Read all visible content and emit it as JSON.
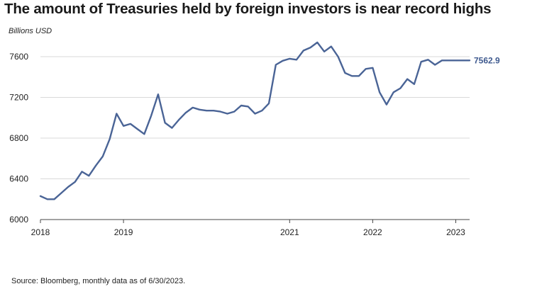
{
  "title": "The amount of Treasuries held by foreign investors is near record highs",
  "unit_label": "Billions USD",
  "source": "Source: Bloomberg, monthly data as of 6/30/2023.",
  "colors": {
    "line": "#4a6496",
    "end_label": "#3f5a8f",
    "grid": "#d9d9d9",
    "axis": "#444444"
  },
  "chart_data": {
    "type": "line",
    "title": "The amount of Treasuries held by foreign investors is near record highs",
    "ylabel": "Billions USD",
    "xlabel": "",
    "ylim": [
      6000,
      7800
    ],
    "yticks": [
      6000,
      6400,
      6800,
      7200,
      7600
    ],
    "xticks": [
      {
        "value": "2018-01",
        "label": "2018"
      },
      {
        "value": "2019-01",
        "label": "2019"
      },
      {
        "value": "2021-01",
        "label": "2021"
      },
      {
        "value": "2022-01",
        "label": "2022"
      },
      {
        "value": "2023-01",
        "label": "2023"
      }
    ],
    "grid": true,
    "end_label": "7562.9",
    "series": [
      {
        "x": [
          "2018-01",
          "2018-02",
          "2018-03",
          "2018-04",
          "2018-05",
          "2018-06",
          "2018-07",
          "2018-08",
          "2018-09",
          "2018-10",
          "2018-11",
          "2018-12",
          "2019-01",
          "2019-02",
          "2019-03",
          "2019-04",
          "2019-05",
          "2019-06",
          "2019-07",
          "2019-08",
          "2019-09",
          "2019-10",
          "2019-11",
          "2019-12",
          "2020-01",
          "2020-02",
          "2020-03",
          "2020-04",
          "2020-05",
          "2020-06",
          "2020-07",
          "2020-08",
          "2020-09",
          "2020-10",
          "2020-11",
          "2020-12",
          "2021-01",
          "2021-02",
          "2021-03",
          "2021-04",
          "2021-05",
          "2021-06",
          "2021-07",
          "2021-08",
          "2021-09",
          "2021-10",
          "2021-11",
          "2021-12",
          "2022-01",
          "2022-02",
          "2022-03",
          "2022-04",
          "2022-05",
          "2022-06",
          "2022-07",
          "2022-08",
          "2022-09",
          "2022-10",
          "2022-11",
          "2022-12",
          "2023-01",
          "2023-02",
          "2023-03",
          "2023-04",
          "2023-05",
          "2023-06"
        ],
        "values": [
          6230,
          6200,
          6200,
          6260,
          6320,
          6370,
          6470,
          6430,
          6530,
          6620,
          6790,
          7040,
          6920,
          6940,
          6890,
          6840,
          7020,
          7230,
          6950,
          6900,
          6980,
          7050,
          7100,
          7080,
          7070,
          7070,
          7060,
          7040,
          7060,
          7120,
          7110,
          7040,
          7070,
          7140,
          7520,
          7560,
          7580,
          7570,
          7660,
          7690,
          7740,
          7650,
          7700,
          7600,
          7440,
          7410,
          7410,
          7480,
          7490,
          7250,
          7130,
          7250,
          7290,
          7380,
          7330,
          7550,
          7570,
          7520,
          7562.9,
          7562.9,
          7562.9,
          7562.9,
          7562.9,
          7562.9,
          7562.9,
          7562.9
        ]
      }
    ]
  }
}
